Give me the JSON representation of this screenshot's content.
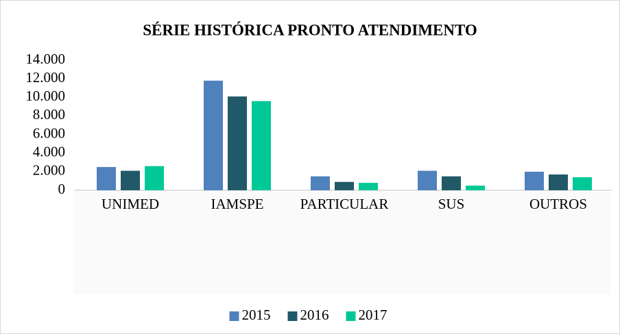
{
  "chart_data": {
    "type": "bar",
    "title": "SÉRIE HISTÓRICA PRONTO ATENDIMENTO",
    "categories": [
      "UNIMED",
      "IAMSPE",
      "PARTICULAR",
      "SUS",
      "OUTROS"
    ],
    "series": [
      {
        "name": "2015",
        "color": "#4f81bd",
        "values": [
          2500,
          11800,
          1500,
          2100,
          2000
        ]
      },
      {
        "name": "2016",
        "color": "#215968",
        "values": [
          2100,
          10100,
          900,
          1500,
          1700
        ]
      },
      {
        "name": "2017",
        "color": "#00c896",
        "values": [
          2600,
          9600,
          800,
          500,
          1400
        ]
      }
    ],
    "ylim": [
      0,
      14000
    ],
    "yticks": [
      0,
      {
        "value": 2000,
        "label": "2.000"
      },
      {
        "value": 4000,
        "label": "4.000"
      },
      {
        "value": 6000,
        "label": "6.000"
      },
      {
        "value": 8000,
        "label": "8.000"
      },
      {
        "value": 10000,
        "label": "10.000"
      },
      {
        "value": 12000,
        "label": "12.000"
      },
      {
        "value": 14000,
        "label": "14.000"
      }
    ],
    "grid": false,
    "legend": "bottom"
  }
}
